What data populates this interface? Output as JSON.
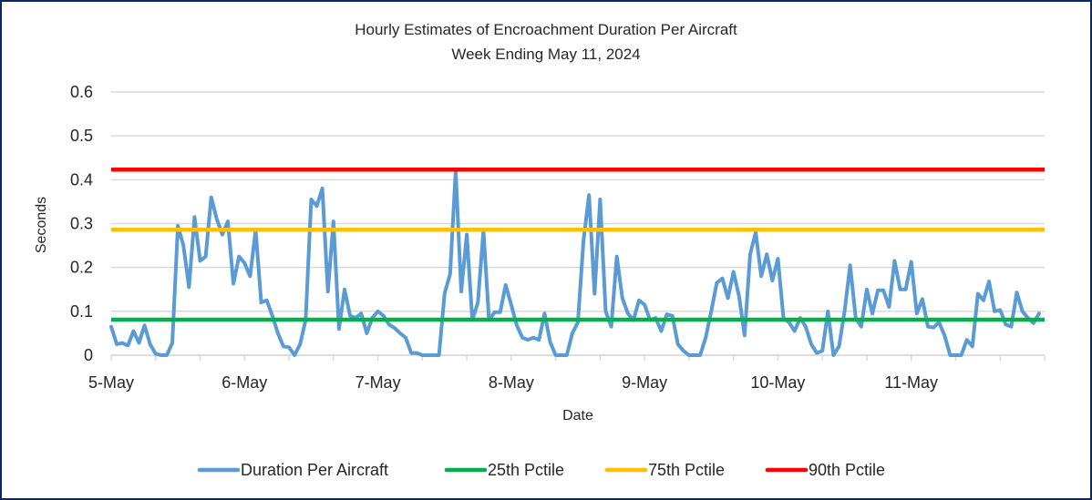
{
  "chart_data": {
    "type": "line",
    "title": "Hourly Estimates of Encroachment Duration Per Aircraft",
    "subtitle": "Week Ending May 11, 2024",
    "xlabel": "Date",
    "ylabel": "Seconds",
    "ylim": [
      0,
      0.6
    ],
    "yticks": [
      0,
      0.1,
      0.2,
      0.3,
      0.4,
      0.5,
      0.6
    ],
    "ytick_labels": [
      "0",
      "0.1",
      "0.2",
      "0.3",
      "0.4",
      "0.5",
      "0.6"
    ],
    "x_unit": "hours since 5-May 00:00",
    "xlim": [
      0,
      168
    ],
    "x_minor_tick_every_hours": 8,
    "xtick_labels": [
      "5-May",
      "6-May",
      "7-May",
      "8-May",
      "9-May",
      "10-May",
      "11-May"
    ],
    "xtick_hours": [
      0,
      24,
      48,
      72,
      96,
      120,
      144
    ],
    "grid": "horizontal",
    "legend_position": "bottom",
    "series": [
      {
        "name": "Duration Per Aircraft",
        "color": "#5b9bd5",
        "kind": "hourly",
        "values": [
          0.065,
          0.025,
          0.028,
          0.022,
          0.055,
          0.028,
          0.068,
          0.025,
          0.003,
          0.0,
          0.0,
          0.028,
          0.295,
          0.25,
          0.155,
          0.315,
          0.215,
          0.225,
          0.36,
          0.31,
          0.275,
          0.305,
          0.163,
          0.225,
          0.21,
          0.18,
          0.285,
          0.12,
          0.125,
          0.09,
          0.05,
          0.02,
          0.018,
          0.0,
          0.025,
          0.08,
          0.355,
          0.34,
          0.38,
          0.145,
          0.305,
          0.06,
          0.15,
          0.09,
          0.085,
          0.095,
          0.05,
          0.085,
          0.1,
          0.09,
          0.07,
          0.062,
          0.05,
          0.04,
          0.005,
          0.005,
          0.0,
          0.0,
          0.0,
          0.0,
          0.14,
          0.185,
          0.42,
          0.145,
          0.275,
          0.08,
          0.12,
          0.285,
          0.08,
          0.098,
          0.098,
          0.16,
          0.115,
          0.068,
          0.04,
          0.035,
          0.04,
          0.035,
          0.095,
          0.03,
          0.0,
          0.0,
          0.0,
          0.05,
          0.075,
          0.26,
          0.365,
          0.14,
          0.355,
          0.1,
          0.065,
          0.225,
          0.13,
          0.095,
          0.08,
          0.125,
          0.115,
          0.08,
          0.085,
          0.055,
          0.093,
          0.09,
          0.025,
          0.01,
          0.0,
          0.0,
          0.0,
          0.04,
          0.1,
          0.165,
          0.175,
          0.13,
          0.19,
          0.135,
          0.045,
          0.23,
          0.28,
          0.18,
          0.23,
          0.17,
          0.22,
          0.085,
          0.075,
          0.055,
          0.085,
          0.065,
          0.025,
          0.005,
          0.01,
          0.1,
          0.0,
          0.02,
          0.1,
          0.205,
          0.085,
          0.065,
          0.15,
          0.095,
          0.148,
          0.148,
          0.11,
          0.215,
          0.15,
          0.15,
          0.213,
          0.095,
          0.128,
          0.065,
          0.063,
          0.075,
          0.045,
          0.0,
          0.0,
          0.0,
          0.035,
          0.02,
          0.14,
          0.125,
          0.168,
          0.1,
          0.103,
          0.07,
          0.065,
          0.143,
          0.1,
          0.085,
          0.073,
          0.095
        ]
      },
      {
        "name": "25th Pctile",
        "color": "#00b050",
        "kind": "constant",
        "value": 0.081
      },
      {
        "name": "75th Pctile",
        "color": "#ffc000",
        "kind": "constant",
        "value": 0.286
      },
      {
        "name": "90th Pctile",
        "color": "#ff0000",
        "kind": "constant",
        "value": 0.423
      }
    ]
  }
}
